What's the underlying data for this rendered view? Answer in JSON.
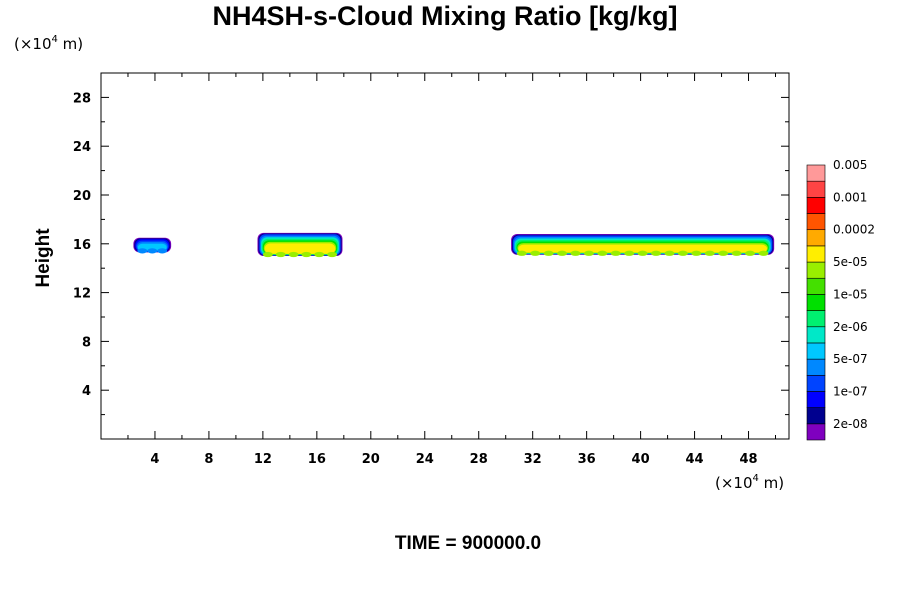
{
  "chart_data": {
    "type": "heatmap",
    "title": "NH4SH-s-Cloud Mixing Ratio [kg/kg]",
    "ylabel": "Height",
    "x_unit": {
      "prefix": "(×10",
      "exponent": "4",
      "suffix": " m)"
    },
    "y_unit": {
      "prefix": "(×10",
      "exponent": "4",
      "suffix": " m)"
    },
    "footer": "TIME = 900000.0",
    "xlim": [
      0,
      51
    ],
    "ylim": [
      0,
      30
    ],
    "x_major_ticks": [
      4,
      8,
      12,
      16,
      20,
      24,
      28,
      32,
      36,
      40,
      44,
      48
    ],
    "x_tick_labels": [
      "4",
      "8",
      "12",
      "16",
      "20",
      "24",
      "28",
      "32",
      "36",
      "40",
      "44",
      "48"
    ],
    "y_major_ticks": [
      4,
      8,
      12,
      16,
      20,
      24,
      28
    ],
    "y_tick_labels": [
      "4",
      "8",
      "12",
      "16",
      "20",
      "24",
      "28"
    ],
    "colorbar": {
      "colors": [
        "#7f00bf",
        "#00008f",
        "#0000ff",
        "#0044ff",
        "#0088ff",
        "#00c8ff",
        "#00e8c8",
        "#00f070",
        "#00e000",
        "#44e000",
        "#99ee00",
        "#ffee00",
        "#ffaa00",
        "#ff5500",
        "#ff0000",
        "#ff4444",
        "#ff9999"
      ],
      "labels": [
        "2e-08",
        "1e-07",
        "5e-07",
        "2e-06",
        "1e-05",
        "5e-05",
        "0.0002",
        "0.001",
        "0.005"
      ]
    },
    "cloud_regions": [
      {
        "x_range": [
          2.4,
          5.2
        ],
        "y_range": [
          15.3,
          16.5
        ],
        "peak_level": "5e-07"
      },
      {
        "x_range": [
          11.6,
          17.9
        ],
        "y_range": [
          15.0,
          16.9
        ],
        "peak_level": "5e-05"
      },
      {
        "x_range": [
          30.4,
          49.9
        ],
        "y_range": [
          15.1,
          16.8
        ],
        "peak_level": "5e-05"
      }
    ]
  }
}
